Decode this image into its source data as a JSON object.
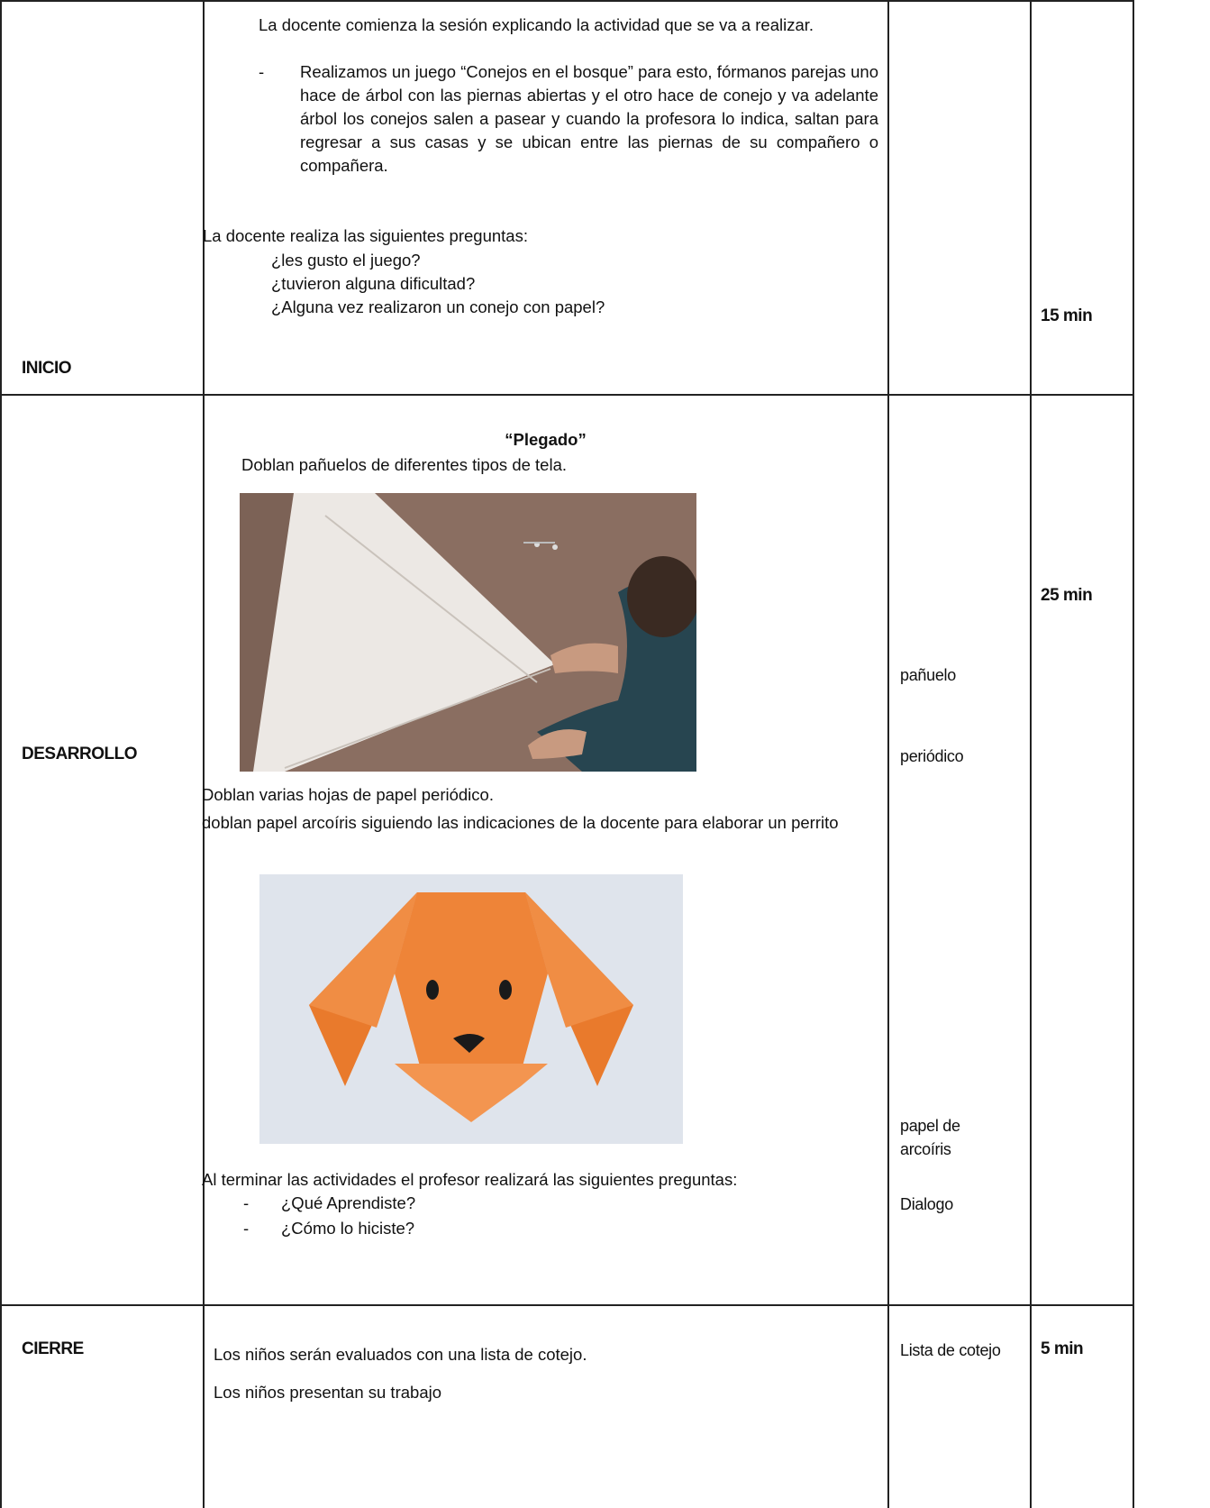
{
  "table": {
    "rows": [
      {
        "stage": "INICIO",
        "time": "15 min",
        "activity": {
          "intro": "La  docente comienza la sesión explicando la actividad que se va a realizar.",
          "bullet": "-",
          "game": "Realizamos un juego  “Conejos en el bosque” para esto, fórmanos parejas uno hace de árbol con las piernas abiertas y el otro hace de conejo y va adelante árbol los conejos salen a pasear y cuando la profesora lo indica, saltan para regresar a sus casas y se ubican entre las piernas de su compañero o compañera.",
          "question_intro": "La docente  realiza las siguientes preguntas:",
          "questions": [
            "¿les gusto el juego?",
            "¿tuvieron alguna dificultad?",
            "¿Alguna vez realizaron un conejo con papel?"
          ]
        }
      },
      {
        "stage": "DESARROLLO",
        "time": "25 min",
        "activity": {
          "title": "“Plegado”",
          "step1": "Doblan pañuelos de diferentes tipos de tela.",
          "step2": "Doblan varias hojas de papel periódico.",
          "step3": "doblan papel arcoíris siguiendo las indicaciones de la docente para elaborar un perrito",
          "question_intro": "Al terminar las actividades el profesor realizará las siguientes preguntas:",
          "questions": [
            {
              "bullet": "-",
              "text": "¿Qué Aprendiste?"
            },
            {
              "bullet": "-",
              "text": "¿Cómo lo hiciste?"
            }
          ]
        },
        "materials": [
          "pañuelo",
          "periódico",
          "papel de arcoíris",
          "Dialogo"
        ]
      },
      {
        "stage": "CIERRE",
        "time": "5 min",
        "activity": {
          "lines": [
            "Los niños serán evaluados con una lista de cotejo.",
            "Los niños presentan su trabajo"
          ]
        },
        "materials": [
          "Lista de cotejo"
        ]
      }
    ]
  }
}
